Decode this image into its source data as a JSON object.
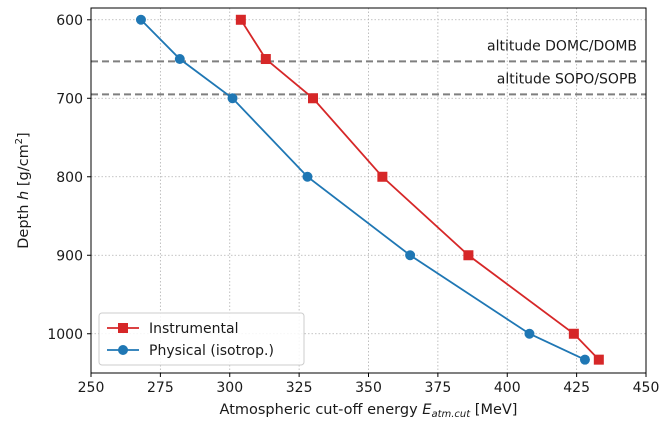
{
  "chart_data": {
    "type": "line",
    "xlabel_prefix": "Atmospheric cut-off energy ",
    "xlabel_var": "E",
    "xlabel_sub": "atm.cut",
    "xlabel_unit": " [MeV]",
    "ylabel_prefix": "Depth ",
    "ylabel_var": "h",
    "ylabel_unit": " [g/cm",
    "ylabel_sup": "2",
    "ylabel_close": "]",
    "xlim": [
      250,
      450
    ],
    "ylim": [
      1050,
      585
    ],
    "y_inverted": true,
    "xticks": [
      "250",
      "275",
      "300",
      "325",
      "350",
      "375",
      "400",
      "425",
      "450"
    ],
    "yticks": [
      "600",
      "700",
      "800",
      "900",
      "1000"
    ],
    "grid": true,
    "legend_position": "lower-left",
    "reference_lines": [
      {
        "label": "altitude DOMC/DOMB",
        "y": 653,
        "color": "#7f7f7f",
        "style": "dashed"
      },
      {
        "label": "altitude SOPO/SOPB",
        "y": 695,
        "color": "#7f7f7f",
        "style": "dashed"
      }
    ],
    "series": [
      {
        "name": "Instrumental",
        "color": "#d62728",
        "marker": "square",
        "x": [
          304,
          313,
          330,
          355,
          386,
          424,
          433
        ],
        "y": [
          600,
          650,
          700,
          800,
          900,
          1000,
          1033
        ]
      },
      {
        "name": "Physical (isotrop.)",
        "color": "#1f77b4",
        "marker": "circle",
        "x": [
          268,
          282,
          301,
          328,
          365,
          408,
          428
        ],
        "y": [
          600,
          650,
          700,
          800,
          900,
          1000,
          1033
        ]
      }
    ]
  }
}
